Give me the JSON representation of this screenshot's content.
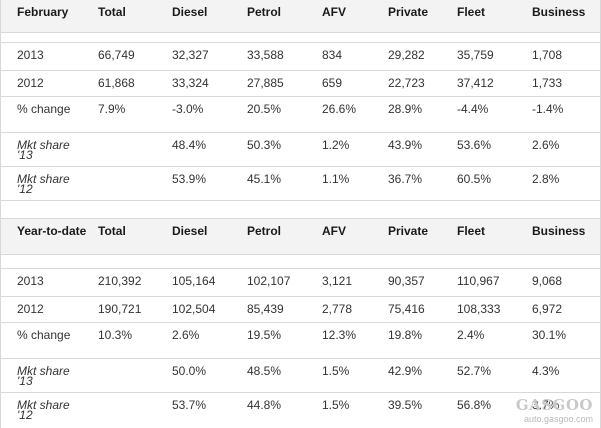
{
  "sections": [
    {
      "header": [
        "February",
        "Total",
        "Diesel",
        "Petrol",
        "AFV",
        "Private",
        "Fleet",
        "Business"
      ],
      "rows": [
        [
          "2013",
          "66,749",
          "32,327",
          "33,588",
          "834",
          "29,282",
          "35,759",
          "1,708"
        ],
        [
          "2012",
          "61,868",
          "33,324",
          "27,885",
          "659",
          "22,723",
          "37,412",
          "1,733"
        ],
        [
          "% change",
          "7.9%",
          "-3.0%",
          "20.5%",
          "26.6%",
          "28.9%",
          "-4.4%",
          "-1.4%"
        ],
        [
          "Mkt share '13",
          "",
          "48.4%",
          "50.3%",
          "1.2%",
          "43.9%",
          "53.6%",
          "2.6%"
        ],
        [
          "Mkt share '12",
          "",
          "53.9%",
          "45.1%",
          "1.1%",
          "36.7%",
          "60.5%",
          "2.8%"
        ]
      ]
    },
    {
      "header": [
        "Year-to-date",
        "Total",
        "Diesel",
        "Petrol",
        "AFV",
        "Private",
        "Fleet",
        "Business"
      ],
      "rows": [
        [
          "2013",
          "210,392",
          "105,164",
          "102,107",
          "3,121",
          "90,357",
          "110,967",
          "9,068"
        ],
        [
          "2012",
          "190,721",
          "102,504",
          "85,439",
          "2,778",
          "75,416",
          "108,333",
          "6,972"
        ],
        [
          "% change",
          "10.3%",
          "2.6%",
          "19.5%",
          "12.3%",
          "19.8%",
          "2.4%",
          "30.1%"
        ],
        [
          "Mkt share '13",
          "",
          "50.0%",
          "48.5%",
          "1.5%",
          "42.9%",
          "52.7%",
          "4.3%"
        ],
        [
          "Mkt share '12",
          "",
          "53.7%",
          "44.8%",
          "1.5%",
          "39.5%",
          "56.8%",
          "3.7%"
        ]
      ]
    }
  ],
  "watermark": {
    "logo": "GASGOO",
    "url": "auto.gasgoo.com"
  }
}
